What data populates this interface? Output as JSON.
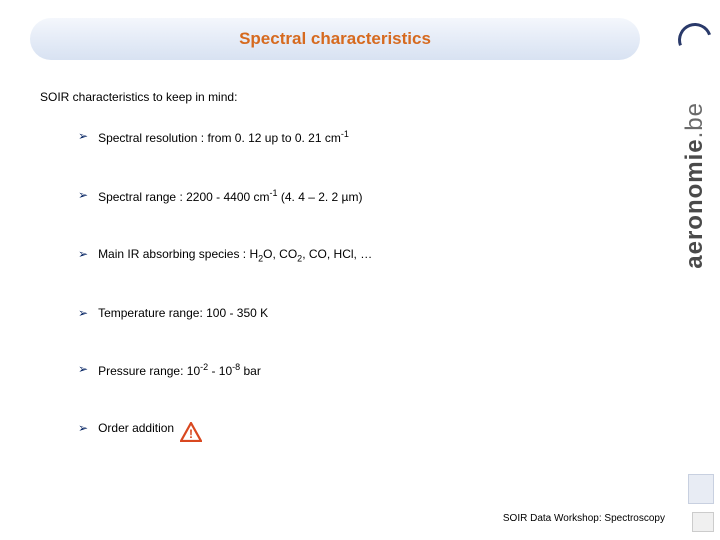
{
  "title": "Spectral characteristics",
  "title_color": "#d66a1f",
  "intro": "SOIR characteristics to keep in mind:",
  "bullets": [
    {
      "pre": "Spectral resolution : from 0. 12 up to 0. 21 cm",
      "sup": "-1",
      "post": ""
    },
    {
      "pre": "Spectral range : 2200 - 4400 cm",
      "sup": "-1",
      "post": "  (4. 4 – 2. 2 µm)"
    },
    {
      "html": "Main IR absorbing species : H<span class='sub'>2</span>O, CO<span class='sub'>2</span>, CO, HCl, …"
    },
    {
      "pre": "Temperature range: 100 - 350 K"
    },
    {
      "html": "Pressure range: 10<span class='sup'>-2</span> - 10<span class='sup'>-8</span> bar"
    },
    {
      "pre": "Order addition",
      "warn": true
    }
  ],
  "footer": "SOIR Data Workshop: Spectroscopy",
  "sidebar_text_bold": "aeronomie",
  "sidebar_text_light": ".be",
  "warn_color": "#d94820",
  "warn_char": "!"
}
